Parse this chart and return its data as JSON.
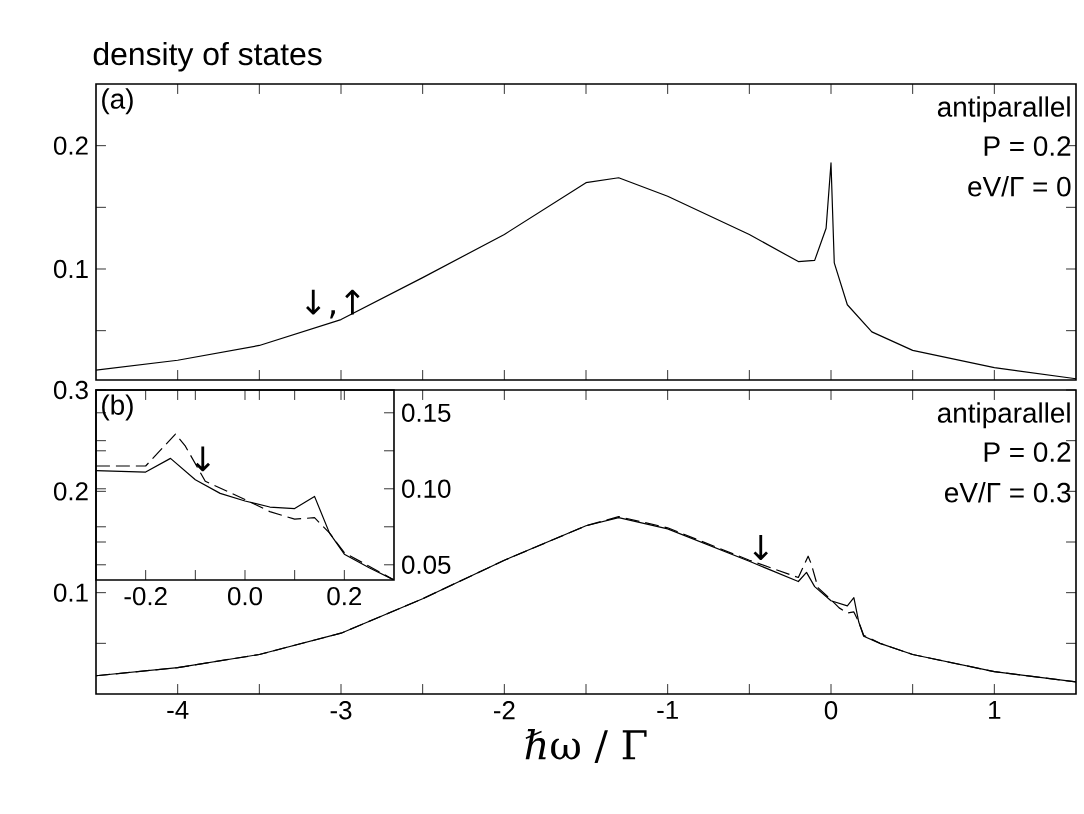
{
  "chart_data": [
    {
      "type": "line",
      "title": "density of states",
      "annotations": [
        "(a)",
        "antiparallel",
        "P = 0.2",
        "eV/Γ = 0",
        {
          "text": "↓,↑",
          "x": -3.05,
          "y": 0.058
        }
      ],
      "x": [
        -4.5,
        -4,
        -3.5,
        -3,
        -2.5,
        -2,
        -1.5,
        -1.3,
        -1,
        -0.5,
        -0.2,
        -0.1,
        -0.03,
        0,
        0.02,
        0.1,
        0.25,
        0.5,
        1,
        1.5
      ],
      "series": [
        {
          "color": "#000000",
          "line_style": "solid",
          "values": [
            0.018,
            0.026,
            0.038,
            0.059,
            0.093,
            0.128,
            0.17,
            0.174,
            0.159,
            0.128,
            0.106,
            0.107,
            0.133,
            0.186,
            0.105,
            0.071,
            0.049,
            0.034,
            0.02,
            0.011
          ]
        }
      ],
      "xlim": [
        -4.5,
        1.5
      ],
      "ylim": [
        0.01,
        0.25
      ],
      "xticks": [
        {
          "value": -4,
          "label": null
        },
        {
          "value": -3.5,
          "label": null
        },
        {
          "value": -3,
          "label": null
        },
        {
          "value": -2.5,
          "label": null
        },
        {
          "value": -2,
          "label": null
        },
        {
          "value": -1.5,
          "label": null
        },
        {
          "value": -1,
          "label": null
        },
        {
          "value": -0.5,
          "label": null
        },
        {
          "value": 0,
          "label": null
        },
        {
          "value": 0.5,
          "label": null
        },
        {
          "value": 1,
          "label": null
        }
      ],
      "yticks": [
        {
          "value": 0.05,
          "label": null
        },
        0.1,
        {
          "value": 0.15,
          "label": null
        },
        0.2
      ],
      "tick_labels": "y"
    },
    {
      "type": "line",
      "xlabel": "ℏω / Γ",
      "annotations": [
        "antiparallel",
        "P = 0.2",
        "eV/Γ = 0.3",
        {
          "text": "↓",
          "x": -0.43,
          "y": 0.13
        }
      ],
      "series": [
        {
          "color": "#000000",
          "line_style": "solid",
          "x": [
            -4.5,
            -4,
            -3.5,
            -3,
            -2.5,
            -2,
            -1.5,
            -1.3,
            -1,
            -0.5,
            -0.2,
            -0.15,
            -0.1,
            0,
            0.1,
            0.14,
            0.17,
            0.2,
            0.3,
            0.5,
            1,
            1.5
          ],
          "values": [
            0.018,
            0.026,
            0.039,
            0.06,
            0.094,
            0.132,
            0.166,
            0.174,
            0.163,
            0.131,
            0.111,
            0.12,
            0.106,
            0.092,
            0.087,
            0.095,
            0.071,
            0.057,
            0.05,
            0.039,
            0.022,
            0.012
          ]
        },
        {
          "color": "#000000",
          "line_style": "dashed",
          "x": [
            -4.5,
            -4,
            -3.5,
            -3,
            -2.5,
            -2,
            -1.5,
            -1.3,
            -1,
            -0.5,
            -0.2,
            -0.14,
            -0.12,
            -0.08,
            0,
            0.05,
            0.1,
            0.14,
            0.17,
            0.2,
            0.3,
            0.5,
            1,
            1.5
          ],
          "values": [
            0.018,
            0.026,
            0.039,
            0.06,
            0.094,
            0.132,
            0.166,
            0.175,
            0.164,
            0.132,
            0.115,
            0.136,
            0.128,
            0.105,
            0.093,
            0.085,
            0.08,
            0.081,
            0.071,
            0.058,
            0.05,
            0.039,
            0.022,
            0.012
          ]
        }
      ],
      "xlim": [
        -4.5,
        1.5
      ],
      "ylim": [
        0,
        0.3
      ],
      "xticks": [
        -4,
        {
          "value": -3.5,
          "label": null
        },
        -3,
        {
          "value": -2.5,
          "label": null
        },
        -2,
        {
          "value": -1.5,
          "label": null
        },
        -1,
        {
          "value": -0.5,
          "label": null
        },
        0,
        {
          "value": 0.5,
          "label": null
        },
        1
      ],
      "yticks": [
        {
          "value": 0.05,
          "label": null
        },
        0.1,
        {
          "value": 0.15,
          "label": null
        },
        0.2,
        {
          "value": 0.25,
          "label": null
        },
        0.3
      ]
    },
    {
      "type": "line",
      "annotations": [
        "(b)",
        {
          "text": "↓",
          "x": -0.085,
          "y": 0.11
        }
      ],
      "series": [
        {
          "color": "#000000",
          "line_style": "solid",
          "x": [
            -0.3,
            -0.2,
            -0.15,
            -0.1,
            -0.05,
            0,
            0.05,
            0.1,
            0.14,
            0.17,
            0.2,
            0.25,
            0.3
          ],
          "values": [
            0.112,
            0.111,
            0.12,
            0.106,
            0.097,
            0.092,
            0.088,
            0.087,
            0.095,
            0.071,
            0.057,
            0.048,
            0.04
          ]
        },
        {
          "color": "#000000",
          "line_style": "dashed",
          "x": [
            -0.3,
            -0.2,
            -0.14,
            -0.12,
            -0.08,
            0,
            0.05,
            0.1,
            0.14,
            0.17,
            0.2,
            0.3
          ],
          "values": [
            0.115,
            0.115,
            0.136,
            0.128,
            0.105,
            0.093,
            0.085,
            0.08,
            0.081,
            0.071,
            0.058,
            0.04
          ]
        }
      ],
      "xlim": [
        -0.3,
        0.3
      ],
      "ylim": [
        0.04,
        0.165
      ],
      "xticks": [
        -0.2,
        {
          "value": -0.1,
          "label": null
        },
        {
          "value": 0,
          "label": "0.0"
        },
        {
          "value": 0.1,
          "label": null
        },
        0.2
      ],
      "yticks": [
        0.05,
        {
          "value": 0.075,
          "label": null
        },
        {
          "value": 0.1,
          "label": "0.10"
        },
        {
          "value": 0.125,
          "label": null
        },
        0.15
      ]
    }
  ]
}
